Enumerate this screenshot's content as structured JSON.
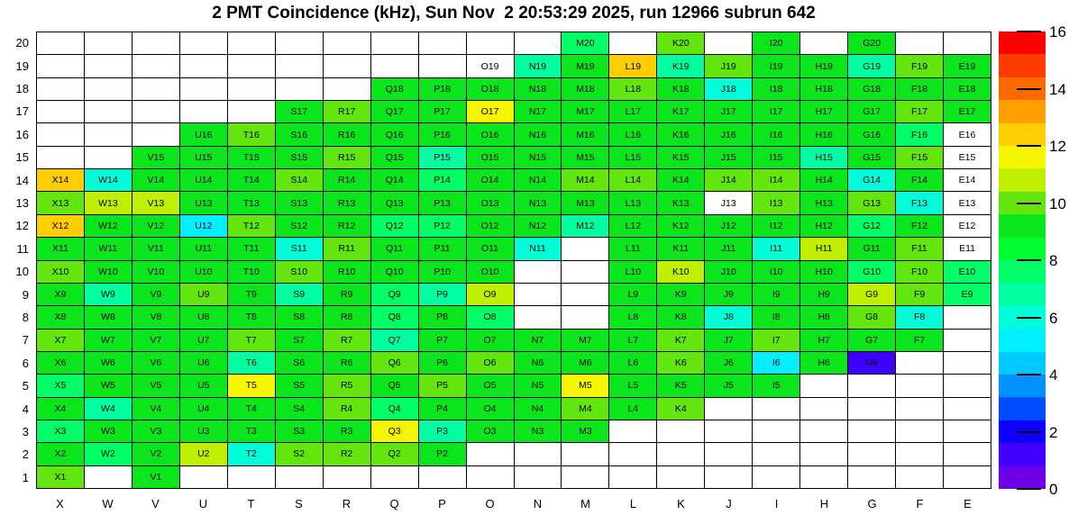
{
  "title": "2 PMT Coincidence (kHz), Sun Nov  2 20:53:29 2025, run 12966 subrun 642",
  "chart_data": {
    "type": "heatmap",
    "title": "2 PMT Coincidence (kHz), Sun Nov  2 20:53:29 2025, run 12966 subrun 642",
    "columns": [
      "X",
      "W",
      "V",
      "U",
      "T",
      "S",
      "R",
      "Q",
      "P",
      "O",
      "N",
      "M",
      "L",
      "K",
      "J",
      "I",
      "H",
      "G",
      "F",
      "E"
    ],
    "rows": [
      20,
      19,
      18,
      17,
      16,
      15,
      14,
      13,
      12,
      11,
      10,
      9,
      8,
      7,
      6,
      5,
      4,
      3,
      2,
      1
    ],
    "value_unit": "kHz",
    "band": 0.8,
    "grid_on": true,
    "note_null_cells": "white cells with label shown but value out of scale",
    "cells": {
      "20": {
        "M": 7.6,
        "K": 10.0,
        "I": 9.2,
        "G": 9.2
      },
      "19": {
        "O": null,
        "N": 6.8,
        "M": 9.2,
        "L": 12.4,
        "K": 6.8,
        "J": 10.0,
        "I": 9.2,
        "H": 9.2,
        "G": 6.8,
        "F": 10.0,
        "E": 9.2
      },
      "18": {
        "Q": 9.2,
        "P": 9.2,
        "O": 9.2,
        "N": 9.2,
        "M": 9.2,
        "L": 10.0,
        "K": 9.2,
        "J": 6.0,
        "I": 9.2,
        "H": 9.2,
        "G": 9.2,
        "F": 9.2,
        "E": 9.2
      },
      "17": {
        "S": 9.2,
        "R": 10.0,
        "Q": 9.2,
        "P": 9.2,
        "O": 11.6,
        "N": 9.2,
        "M": 9.2,
        "L": 9.2,
        "K": 9.2,
        "J": 9.2,
        "I": 9.2,
        "H": 9.2,
        "G": 9.2,
        "F": 10.0,
        "E": 9.2
      },
      "16": {
        "U": 9.2,
        "T": 10.0,
        "S": 9.2,
        "R": 9.2,
        "Q": 9.2,
        "P": 9.2,
        "O": 9.2,
        "N": 9.2,
        "M": 9.2,
        "L": 9.2,
        "K": 9.2,
        "J": 9.2,
        "I": 9.2,
        "H": 9.2,
        "G": 9.2,
        "F": 7.6,
        "E": null
      },
      "15": {
        "V": 9.2,
        "U": 9.2,
        "T": 9.2,
        "S": 9.2,
        "R": 10.0,
        "Q": 9.2,
        "P": 6.8,
        "O": 9.2,
        "N": 9.2,
        "M": 9.2,
        "L": 9.2,
        "K": 9.2,
        "J": 9.2,
        "I": 9.2,
        "H": 6.8,
        "G": 9.2,
        "F": 10.0,
        "E": null
      },
      "14": {
        "X": 12.4,
        "W": 6.0,
        "V": 9.2,
        "U": 9.2,
        "T": 9.2,
        "S": 10.0,
        "R": 9.2,
        "Q": 9.2,
        "P": 7.6,
        "O": 9.2,
        "N": 9.2,
        "M": 10.0,
        "L": 10.0,
        "K": 9.2,
        "J": 10.0,
        "I": 10.0,
        "H": 9.2,
        "G": 6.0,
        "F": 9.2,
        "E": null
      },
      "13": {
        "X": 10.0,
        "W": 10.8,
        "V": 10.8,
        "U": 9.2,
        "T": 9.2,
        "S": 9.2,
        "R": 9.2,
        "Q": 9.2,
        "P": 9.2,
        "O": 9.2,
        "N": 9.2,
        "M": 9.2,
        "L": 9.2,
        "K": 9.2,
        "J": null,
        "I": 10.0,
        "H": 9.2,
        "G": 10.0,
        "F": 6.0,
        "E": null
      },
      "12": {
        "X": 12.4,
        "W": 9.2,
        "V": 9.2,
        "U": 5.2,
        "T": 10.0,
        "S": 9.2,
        "R": 9.2,
        "Q": 7.6,
        "P": 7.6,
        "O": 9.2,
        "N": 9.2,
        "M": 6.8,
        "L": 9.2,
        "K": 9.2,
        "J": 9.2,
        "I": 9.2,
        "H": 9.2,
        "G": 7.6,
        "F": 9.2,
        "E": null
      },
      "11": {
        "X": 9.2,
        "W": 9.2,
        "V": 9.2,
        "U": 9.2,
        "T": 9.2,
        "S": 6.0,
        "R": 10.0,
        "Q": 9.2,
        "P": 9.2,
        "O": 9.2,
        "N": 6.0,
        "L": 9.2,
        "K": 9.2,
        "J": 9.2,
        "I": 6.0,
        "H": 10.8,
        "G": 9.2,
        "F": 10.0,
        "E": null
      },
      "10": {
        "X": 10.0,
        "W": 9.2,
        "V": 9.2,
        "U": 9.2,
        "T": 9.2,
        "S": 10.0,
        "R": 9.2,
        "Q": 9.2,
        "P": 9.2,
        "O": 9.2,
        "L": 9.2,
        "K": 10.8,
        "J": 9.2,
        "I": 9.2,
        "H": 9.2,
        "G": 7.6,
        "F": 10.0,
        "E": 7.6
      },
      "9": {
        "X": 9.2,
        "W": 6.8,
        "V": 9.2,
        "U": 10.0,
        "T": 9.2,
        "S": 6.8,
        "R": 9.2,
        "Q": 7.6,
        "P": 6.8,
        "O": 10.8,
        "L": 9.2,
        "K": 9.2,
        "J": 9.2,
        "I": 9.2,
        "H": 9.2,
        "G": 10.8,
        "F": 10.0,
        "E": 7.6
      },
      "8": {
        "X": 9.2,
        "W": 9.2,
        "V": 9.2,
        "U": 9.2,
        "T": 9.2,
        "S": 9.2,
        "R": 9.2,
        "Q": 7.6,
        "P": 9.2,
        "O": 7.6,
        "L": 9.2,
        "K": 9.2,
        "J": 6.0,
        "I": 9.2,
        "H": 9.2,
        "G": 10.0,
        "F": 6.0
      },
      "7": {
        "X": 10.0,
        "W": 9.2,
        "V": 9.2,
        "U": 9.2,
        "T": 10.0,
        "S": 9.2,
        "R": 10.0,
        "Q": 6.8,
        "P": 9.2,
        "O": 9.2,
        "N": 9.2,
        "M": 9.2,
        "L": 9.2,
        "K": 10.0,
        "J": 9.2,
        "I": 10.0,
        "H": 9.2,
        "G": 9.2,
        "F": 9.2
      },
      "6": {
        "X": 9.2,
        "W": 9.2,
        "V": 9.2,
        "U": 9.2,
        "T": 6.8,
        "S": 9.2,
        "R": 9.2,
        "Q": 10.0,
        "P": 9.2,
        "O": 10.0,
        "N": 9.2,
        "M": 9.2,
        "L": 9.2,
        "K": 10.0,
        "J": 9.2,
        "I": 5.2,
        "H": 9.2,
        "G": 1.4
      },
      "5": {
        "X": 7.6,
        "W": 9.2,
        "V": 9.2,
        "U": 9.2,
        "T": 11.6,
        "S": 9.2,
        "R": 10.0,
        "Q": 9.2,
        "P": 10.0,
        "O": 9.2,
        "N": 9.2,
        "M": 11.6,
        "L": 9.2,
        "K": 9.2,
        "J": 9.2,
        "I": 9.2
      },
      "4": {
        "X": 9.2,
        "W": 6.8,
        "V": 9.2,
        "U": 9.2,
        "T": 9.2,
        "S": 9.2,
        "R": 10.0,
        "Q": 7.6,
        "P": 9.2,
        "O": 9.2,
        "N": 9.2,
        "M": 10.0,
        "L": 9.2,
        "K": 10.0
      },
      "3": {
        "X": 7.6,
        "W": 9.2,
        "V": 9.2,
        "U": 9.2,
        "T": 9.2,
        "S": 9.2,
        "R": 9.2,
        "Q": 11.6,
        "P": 6.8,
        "O": 9.2,
        "N": 9.2,
        "M": 9.2
      },
      "2": {
        "X": 9.2,
        "W": 7.6,
        "V": 9.2,
        "U": 10.8,
        "T": 6.0,
        "S": 10.0,
        "R": 10.0,
        "Q": 10.0,
        "P": 9.2
      },
      "1": {
        "X": 10.0,
        "V": 9.2
      }
    },
    "palette": [
      "#6E00E8",
      "#3F00FF",
      "#0D00FF",
      "#004CFF",
      "#0092FF",
      "#00C9FF",
      "#00F0FF",
      "#00FFD8",
      "#00FFA0",
      "#00FF66",
      "#00FB31",
      "#0AE51C",
      "#63E60D",
      "#C0F000",
      "#F6F600",
      "#FFCE00",
      "#FF9E00",
      "#FF6A00",
      "#FF3C00",
      "#FF0000"
    ],
    "colorbar": {
      "min": 0,
      "max": 16,
      "ticks": [
        0,
        2,
        4,
        6,
        8,
        10,
        12,
        14,
        16
      ],
      "position": "right"
    }
  }
}
